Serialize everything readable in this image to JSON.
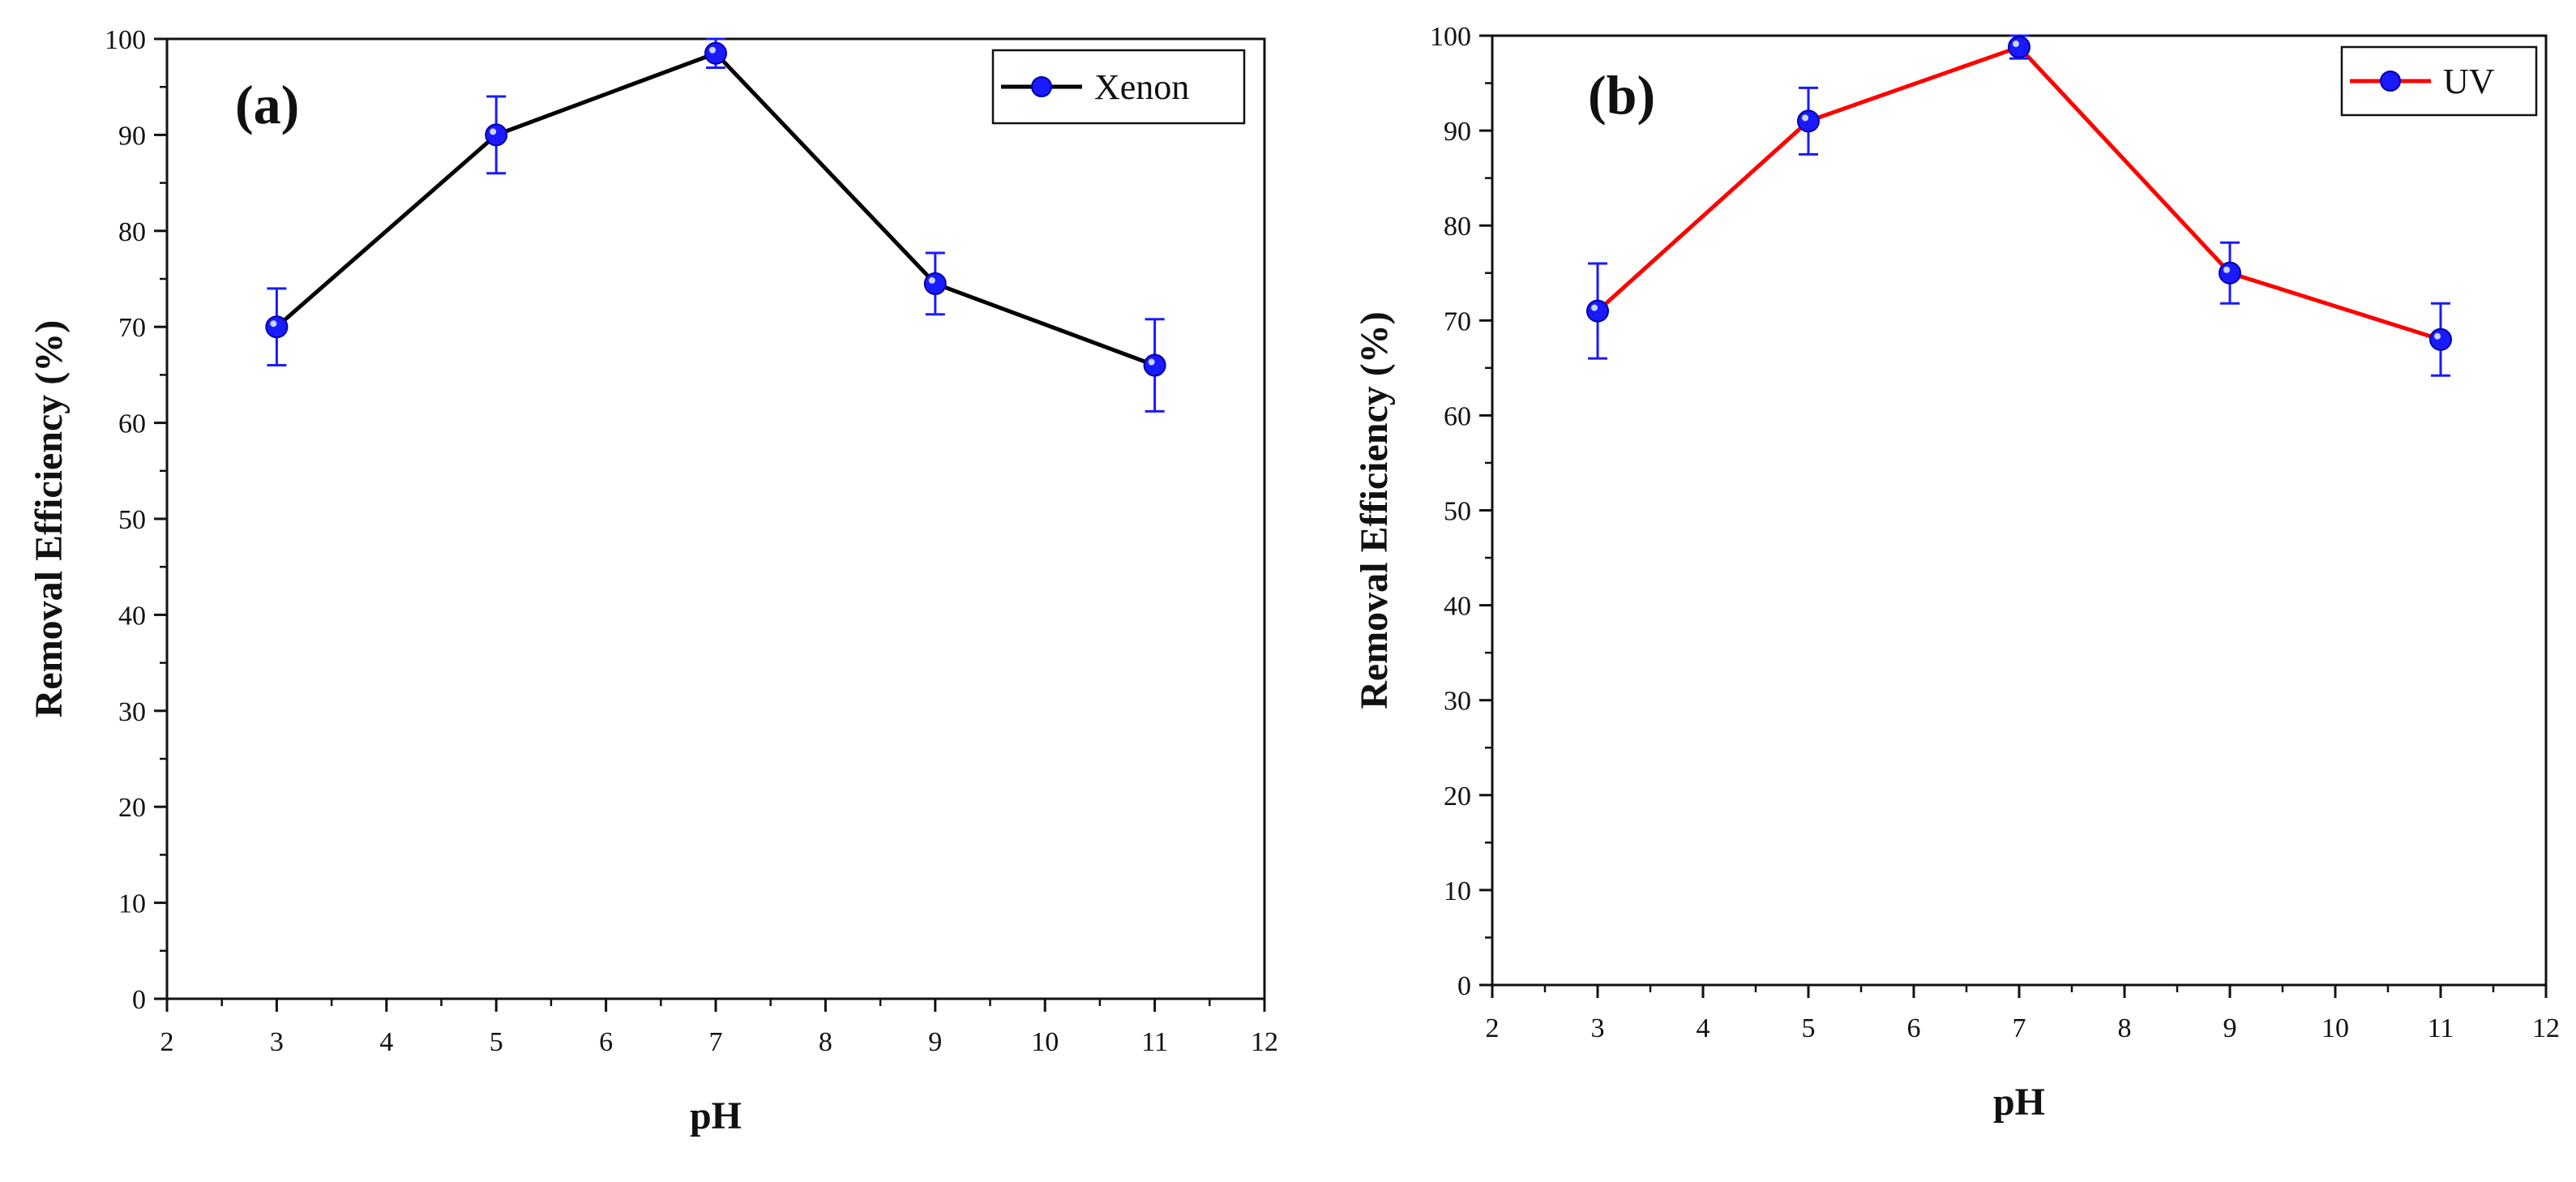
{
  "chart_data": [
    {
      "type": "line",
      "panel_label": "(a)",
      "xlabel": "pH",
      "ylabel": "Removal Efficiency (%)",
      "xlim": [
        2,
        12
      ],
      "ylim": [
        0,
        100
      ],
      "xticks": [
        2,
        3,
        4,
        5,
        6,
        7,
        8,
        9,
        10,
        11,
        12
      ],
      "yticks": [
        0,
        10,
        20,
        30,
        40,
        50,
        60,
        70,
        80,
        90,
        100
      ],
      "legend_position": "top-right",
      "series": [
        {
          "name": "Xenon",
          "line_color": "#000000",
          "marker_color": "#1a1aff",
          "error_color": "#1a1aff",
          "x": [
            3,
            5,
            7,
            9,
            11
          ],
          "y": [
            70,
            90,
            98.5,
            74.5,
            66
          ],
          "yerr": [
            4,
            4,
            1.5,
            3.2,
            4.8
          ]
        }
      ]
    },
    {
      "type": "line",
      "panel_label": "(b)",
      "xlabel": "pH",
      "ylabel": "Removal Efficiency (%)",
      "xlim": [
        2,
        12
      ],
      "ylim": [
        0,
        100
      ],
      "xticks": [
        2,
        3,
        4,
        5,
        6,
        7,
        8,
        9,
        10,
        11,
        12
      ],
      "yticks": [
        0,
        10,
        20,
        30,
        40,
        50,
        60,
        70,
        80,
        90,
        100
      ],
      "legend_position": "top-right",
      "series": [
        {
          "name": "UV",
          "line_color": "#ff0000",
          "marker_color": "#1a1aff",
          "error_color": "#1a1aff",
          "x": [
            3,
            5,
            7,
            9,
            11
          ],
          "y": [
            71,
            91,
            98.8,
            75,
            68
          ],
          "yerr": [
            5,
            3.5,
            1.2,
            3.2,
            3.8
          ]
        }
      ]
    }
  ]
}
